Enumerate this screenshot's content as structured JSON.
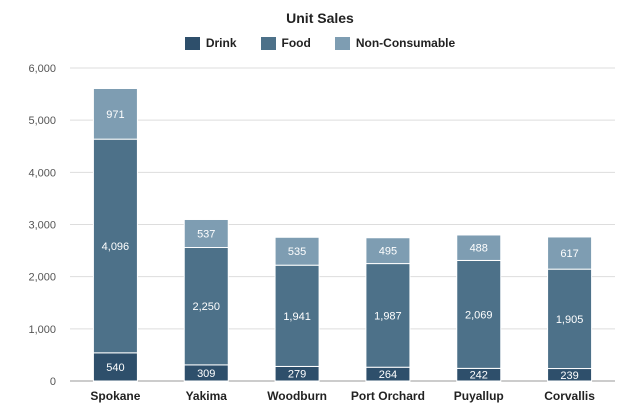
{
  "chart_data": {
    "type": "bar",
    "stacked": true,
    "title": "Unit Sales",
    "xlabel": "",
    "ylabel": "",
    "ylim": [
      0,
      6000
    ],
    "yticks": [
      "0",
      "1,000",
      "2,000",
      "3,000",
      "4,000",
      "5,000",
      "6,000"
    ],
    "ytick_values": [
      0,
      1000,
      2000,
      3000,
      4000,
      5000,
      6000
    ],
    "grid": true,
    "legend_position": "top-center",
    "categories": [
      "Spokane",
      "Yakima",
      "Woodburn",
      "Port Orchard",
      "Puyallup",
      "Corvallis"
    ],
    "series": [
      {
        "name": "Drink",
        "color": "#2e4f6b",
        "values": [
          540,
          309,
          279,
          264,
          242,
          239
        ],
        "labels": [
          "540",
          "309",
          "279",
          "264",
          "242",
          "239"
        ]
      },
      {
        "name": "Food",
        "color": "#4d7189",
        "values": [
          4096,
          2250,
          1941,
          1987,
          2069,
          1905
        ],
        "labels": [
          "4,096",
          "2,250",
          "1,941",
          "1,987",
          "2,069",
          "1,905"
        ]
      },
      {
        "name": "Non-Consumable",
        "color": "#7e9db2",
        "values": [
          971,
          537,
          535,
          495,
          488,
          617
        ],
        "labels": [
          "971",
          "537",
          "535",
          "495",
          "488",
          "617"
        ]
      }
    ]
  }
}
